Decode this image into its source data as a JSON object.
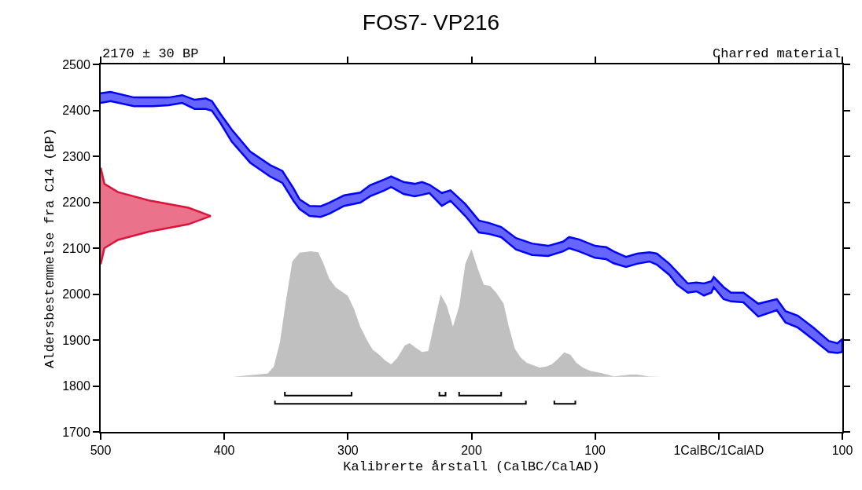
{
  "chart_data": {
    "type": "line",
    "title": "FOS7- VP216",
    "xlabel": "Kalibrerte årstall (CalBC/CalAD)",
    "ylabel": "Aldersbestemmelse fra C14 (BP)",
    "annotations": [
      "2170 ± 30 BP",
      "Charred material"
    ],
    "xlim": [
      -500,
      100
    ],
    "xticks": [
      {
        "value": -500,
        "label": "500"
      },
      {
        "value": -400,
        "label": "400"
      },
      {
        "value": -300,
        "label": "300"
      },
      {
        "value": -200,
        "label": "200"
      },
      {
        "value": -100,
        "label": "100"
      },
      {
        "value": 0,
        "label": "1CalBC/1CalAD"
      },
      100
    ],
    "ylim": [
      1700,
      2500
    ],
    "yticks": [
      1700,
      1800,
      1900,
      2000,
      2100,
      2200,
      2300,
      2400,
      2500
    ],
    "series": [
      {
        "type": "area",
        "color": "#0000ff",
        "x": [
          -500,
          -492,
          -473,
          -458,
          -445,
          -434,
          -424,
          -415,
          -410,
          -403,
          -394,
          -379,
          -363,
          -353,
          -344,
          -339,
          -331,
          -322,
          -315,
          -303,
          -290,
          -282,
          -271,
          -265,
          -255,
          -246,
          -240,
          -234,
          -224,
          -217,
          -205,
          -194,
          -186,
          -176,
          -164,
          -151,
          -138,
          -126,
          -121,
          -113,
          -100,
          -91,
          -85,
          -75,
          -66,
          -56,
          -50,
          -40,
          -34,
          -25,
          -18,
          -12,
          -6,
          -4,
          4,
          10,
          20,
          32,
          47,
          54,
          64,
          77,
          89,
          96,
          100,
          100,
          96,
          89,
          77,
          64,
          54,
          47,
          32,
          20,
          10,
          4,
          -4,
          -6,
          -12,
          -18,
          -25,
          -34,
          -40,
          -50,
          -56,
          -66,
          -75,
          -85,
          -91,
          -100,
          -113,
          -121,
          -126,
          -138,
          -151,
          -164,
          -176,
          -186,
          -194,
          -205,
          -217,
          -224,
          -234,
          -240,
          -246,
          -255,
          -265,
          -271,
          -282,
          -290,
          -303,
          -315,
          -322,
          -331,
          -339,
          -344,
          -353,
          -363,
          -379,
          -394,
          -403,
          -410,
          -415,
          -424,
          -434,
          -445,
          -458,
          -473,
          -492,
          -500
        ],
        "values": [
          2437,
          2440,
          2428,
          2428,
          2428,
          2433,
          2423,
          2426,
          2420,
          2392,
          2358,
          2310,
          2281,
          2268,
          2230,
          2206,
          2192,
          2191,
          2199,
          2215,
          2221,
          2237,
          2249,
          2256,
          2244,
          2240,
          2244,
          2238,
          2220,
          2226,
          2196,
          2160,
          2155,
          2146,
          2122,
          2110,
          2105,
          2114,
          2124,
          2119,
          2105,
          2102,
          2093,
          2081,
          2088,
          2091,
          2088,
          2066,
          2049,
          2023,
          2025,
          2023,
          2028,
          2037,
          2015,
          2003,
          2003,
          1979,
          1989,
          1963,
          1953,
          1926,
          1898,
          1893,
          1902,
          1874,
          1872,
          1874,
          1900,
          1927,
          1938,
          1965,
          1951,
          1982,
          1984,
          1989,
          2015,
          2003,
          1997,
          2006,
          2003,
          2021,
          2042,
          2064,
          2071,
          2066,
          2059,
          2067,
          2076,
          2079,
          2093,
          2100,
          2093,
          2083,
          2085,
          2097,
          2124,
          2131,
          2134,
          2170,
          2203,
          2192,
          2220,
          2216,
          2213,
          2218,
          2233,
          2225,
          2213,
          2199,
          2192,
          2175,
          2168,
          2170,
          2185,
          2203,
          2242,
          2256,
          2286,
          2332,
          2372,
          2399,
          2403,
          2403,
          2416,
          2411,
          2409,
          2409,
          2420,
          2416
        ]
      },
      {
        "type": "area",
        "color": "#dc143c",
        "x": [
          -500,
          -497,
          -486,
          -461,
          -429,
          -411,
          -429,
          -461,
          -486,
          -497,
          -500
        ],
        "values": [
          2275,
          2240,
          2222,
          2204,
          2188,
          2170,
          2152,
          2136,
          2118,
          2100,
          2065
        ]
      },
      {
        "type": "area",
        "color": "#c0c0c0",
        "x": [
          -393,
          -365,
          -360,
          -355,
          -350,
          -345,
          -339,
          -330,
          -324,
          -320,
          -315,
          -310,
          -300,
          -295,
          -290,
          -284,
          -280,
          -275,
          -270,
          -265,
          -260,
          -254,
          -250,
          -245,
          -240,
          -235,
          -230,
          -225,
          -220,
          -215,
          -210,
          -205,
          -200,
          -195,
          -190,
          -185,
          -180,
          -174,
          -170,
          -165,
          -160,
          -155,
          -145,
          -140,
          -135,
          -130,
          -125,
          -120,
          -115,
          -110,
          -104,
          -95,
          -85,
          -71,
          -66,
          -57,
          -47
        ],
        "values": [
          1820,
          1827,
          1842,
          1895,
          1987,
          2071,
          2090,
          2093,
          2091,
          2068,
          2033,
          2015,
          1996,
          1967,
          1929,
          1897,
          1879,
          1869,
          1856,
          1847,
          1861,
          1888,
          1893,
          1883,
          1874,
          1876,
          1938,
          1999,
          1975,
          1929,
          1973,
          2066,
          2098,
          2056,
          2020,
          2018,
          2003,
          1979,
          1931,
          1881,
          1861,
          1850,
          1840,
          1842,
          1847,
          1859,
          1873,
          1868,
          1850,
          1840,
          1833,
          1828,
          1821,
          1825,
          1825,
          1821,
          1820
        ]
      },
      {
        "color": "#000000",
        "x": [
          -351,
          -351,
          -297,
          -297,
          null,
          -226,
          -226,
          -221,
          -221,
          null,
          -210,
          -210,
          -176,
          -176,
          null,
          -359,
          -359,
          -156,
          -156,
          null,
          -133,
          -133,
          -116,
          -116
        ],
        "values": [
          1787,
          1779,
          1779,
          1787,
          null,
          1787,
          1779,
          1779,
          1787,
          null,
          1787,
          1779,
          1779,
          1787,
          null,
          1768,
          1761,
          1761,
          1768,
          null,
          1768,
          1761,
          1761,
          1768
        ]
      }
    ]
  }
}
